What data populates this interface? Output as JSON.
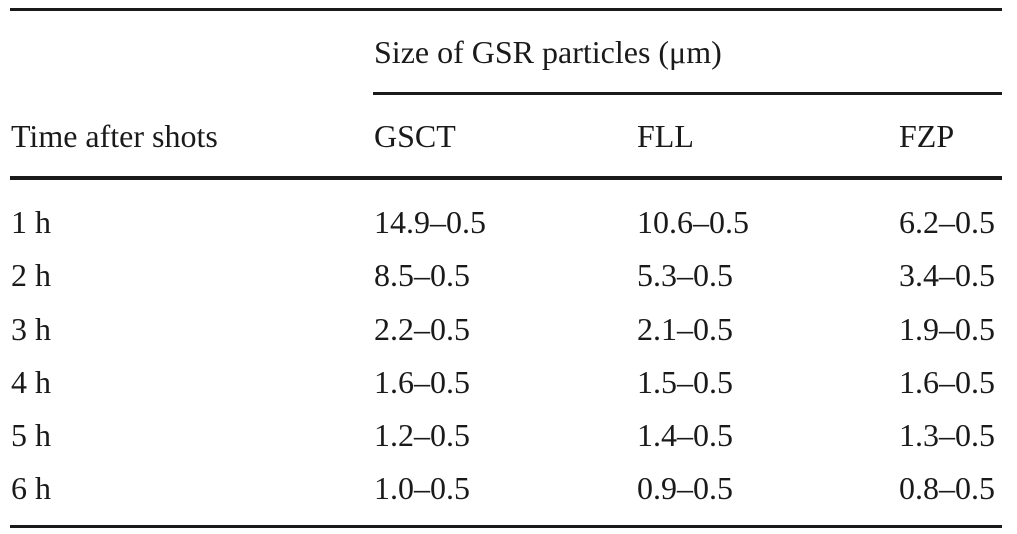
{
  "table": {
    "group_header": "Size of GSR particles (μm)",
    "stub_header": "Time after shots",
    "columns": [
      "GSCT",
      "FLL",
      "FZP"
    ],
    "rows": [
      [
        "1  h",
        "14.9–0.5",
        "10.6–0.5",
        "6.2–0.5"
      ],
      [
        "2  h",
        "8.5–0.5",
        "5.3–0.5",
        "3.4–0.5"
      ],
      [
        "3  h",
        "2.2–0.5",
        "2.1–0.5",
        "1.9–0.5"
      ],
      [
        "4  h",
        "1.6–0.5",
        "1.5–0.5",
        "1.6–0.5"
      ],
      [
        "5  h",
        "1.2–0.5",
        "1.4–0.5",
        "1.3–0.5"
      ],
      [
        "6  h",
        "1.0–0.5",
        "0.9–0.5",
        "0.8–0.5"
      ]
    ]
  }
}
